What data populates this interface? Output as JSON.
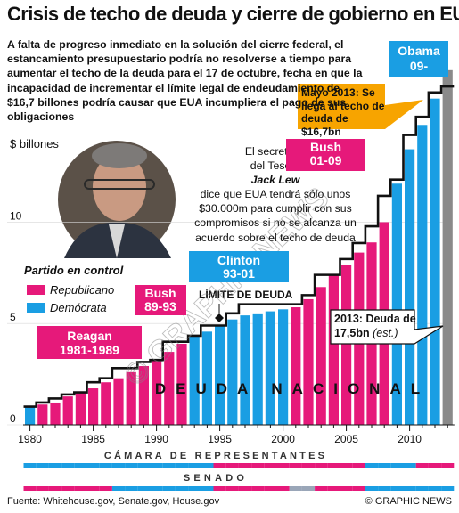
{
  "title": "Crisis de techo de deuda y cierre de gobierno en EUA",
  "intro": "A falta de progreso inmediato en la solución del cierre federal, el estancamiento presupuestario podría no resolverse a tiempo para aumentar el techo de la deuda para el 17 de octubre, fecha en que la incapacidad de incrementar el límite legal de endeudamiento de $16,7 billones podría causar que EUA incumpliera el pago de sus obligaciones",
  "colors": {
    "republican": "#e6197a",
    "democrat": "#1a9ee3",
    "unified": "#9aa6b8",
    "projection": "#8a8a8a",
    "callout": "#f7a400",
    "ceiling": "#111111"
  },
  "units_label": "$ billones",
  "quote": {
    "line1": "El secretario",
    "line2": "del Tesoro",
    "name": "Jack Lew",
    "rest": "dice que EUA tendrá sólo unos $30.000m para cumplir con sus compromisos si no se alcanza un acuerdo sobre el techo de deuda"
  },
  "legend": {
    "title": "Partido en control",
    "republican": "Republicano",
    "democrat": "Demócrata"
  },
  "presidents": [
    {
      "name": "Reagan",
      "years": "1981-1989",
      "party": "republican"
    },
    {
      "name": "Bush",
      "years": "89-93",
      "party": "republican"
    },
    {
      "name": "Clinton",
      "years": "93-01",
      "party": "democrat"
    },
    {
      "name": "Bush",
      "years": "01-09",
      "party": "republican"
    },
    {
      "name": "Obama",
      "years": "09-",
      "party": "democrat"
    }
  ],
  "callouts": {
    "may2013": "Mayo 2013: Se llega al techo de deuda de $16,7bn",
    "y2013_bold": "2013: Deuda de 17,5bn",
    "y2013_est": "(est.)"
  },
  "ceiling_label": "LÍMITE DE DEUDA",
  "debt_label": "DEUDA NACIONAL",
  "house_label": "CÁMARA DE REPRESENTANTES",
  "senate_label": "SENADO",
  "house_control": [
    "democrat",
    "democrat",
    "democrat",
    "democrat",
    "democrat",
    "democrat",
    "democrat",
    "democrat",
    "democrat",
    "democrat",
    "democrat",
    "democrat",
    "democrat",
    "democrat",
    "democrat",
    "republican",
    "republican",
    "republican",
    "republican",
    "republican",
    "republican",
    "republican",
    "republican",
    "republican",
    "republican",
    "republican",
    "republican",
    "democrat",
    "democrat",
    "democrat",
    "democrat",
    "republican",
    "republican",
    "republican"
  ],
  "senate_control": [
    "republican",
    "republican",
    "republican",
    "republican",
    "republican",
    "republican",
    "republican",
    "democrat",
    "democrat",
    "democrat",
    "democrat",
    "democrat",
    "democrat",
    "democrat",
    "democrat",
    "republican",
    "republican",
    "republican",
    "republican",
    "republican",
    "republican",
    "unified",
    "unified",
    "republican",
    "republican",
    "republican",
    "republican",
    "democrat",
    "democrat",
    "democrat",
    "democrat",
    "democrat",
    "democrat",
    "democrat"
  ],
  "watermark": "© GRAPHIC NEWS",
  "source": "Fuente: Whitehouse.gov, Senate.gov, House.gov",
  "credit": "© GRAPHIC NEWS",
  "chart_data": {
    "type": "bar",
    "title": "Crisis de techo de deuda y cierre de gobierno en EUA",
    "ylabel": "$ billones",
    "ylim": [
      0,
      17.8
    ],
    "yticks": [
      0,
      5,
      10
    ],
    "xticks": [
      1980,
      1985,
      1990,
      1995,
      2000,
      2005,
      2010
    ],
    "years": [
      1980,
      1981,
      1982,
      1983,
      1984,
      1985,
      1986,
      1987,
      1988,
      1989,
      1990,
      1991,
      1992,
      1993,
      1994,
      1995,
      1996,
      1997,
      1998,
      1999,
      2000,
      2001,
      2002,
      2003,
      2004,
      2005,
      2006,
      2007,
      2008,
      2009,
      2010,
      2011,
      2012,
      2013
    ],
    "series": [
      {
        "name": "DEUDA NACIONAL",
        "values": [
          0.9,
          1.0,
          1.1,
          1.4,
          1.6,
          1.8,
          2.1,
          2.3,
          2.6,
          2.9,
          3.2,
          3.6,
          4.0,
          4.4,
          4.6,
          4.9,
          5.2,
          5.4,
          5.5,
          5.6,
          5.7,
          5.8,
          6.2,
          6.8,
          7.4,
          7.9,
          8.5,
          9.0,
          10.0,
          11.9,
          13.6,
          14.8,
          16.1,
          17.5
        ]
      },
      {
        "name": "LÍMITE DE DEUDA",
        "values": [
          0.9,
          1.1,
          1.3,
          1.5,
          1.6,
          2.1,
          2.3,
          2.8,
          2.8,
          3.1,
          3.2,
          4.1,
          4.1,
          4.4,
          4.9,
          4.9,
          5.5,
          5.95,
          5.95,
          5.95,
          5.95,
          5.95,
          6.4,
          7.4,
          7.4,
          8.18,
          8.97,
          9.8,
          11.3,
          12.1,
          14.3,
          15.2,
          16.4,
          16.7
        ]
      }
    ],
    "party": [
      "democrat",
      "republican",
      "republican",
      "republican",
      "republican",
      "republican",
      "republican",
      "republican",
      "republican",
      "republican",
      "republican",
      "republican",
      "republican",
      "democrat",
      "democrat",
      "democrat",
      "democrat",
      "democrat",
      "democrat",
      "democrat",
      "democrat",
      "republican",
      "republican",
      "republican",
      "republican",
      "republican",
      "republican",
      "republican",
      "republican",
      "democrat",
      "democrat",
      "democrat",
      "democrat",
      "democrat"
    ],
    "estimated": [
      2013
    ]
  }
}
